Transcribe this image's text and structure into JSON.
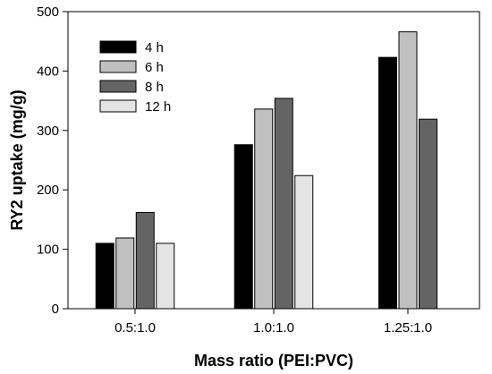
{
  "chart_data": {
    "type": "bar",
    "xlabel": "Mass ratio (PEI:PVC)",
    "ylabel": "RY2 uptake (mg/g)",
    "categories": [
      "0.5:1.0",
      "1.0:1.0",
      "1.25:1.0"
    ],
    "ylim": [
      0,
      500
    ],
    "yticks": [
      0,
      100,
      200,
      300,
      400,
      500
    ],
    "ytick_labels": [
      "0",
      "100",
      "200",
      "300",
      "400",
      "500"
    ],
    "series": [
      {
        "name": "4 h",
        "color": "#000000",
        "values": [
          110,
          276,
          423
        ]
      },
      {
        "name": "6 h",
        "color": "#c0c0c0",
        "values": [
          119,
          336,
          466
        ]
      },
      {
        "name": "8 h",
        "color": "#646464",
        "values": [
          162,
          354,
          319
        ]
      },
      {
        "name": "12 h",
        "color": "#e4e4e4",
        "values": [
          110,
          224,
          null
        ]
      }
    ],
    "legend": "top-left",
    "grid": false
  }
}
